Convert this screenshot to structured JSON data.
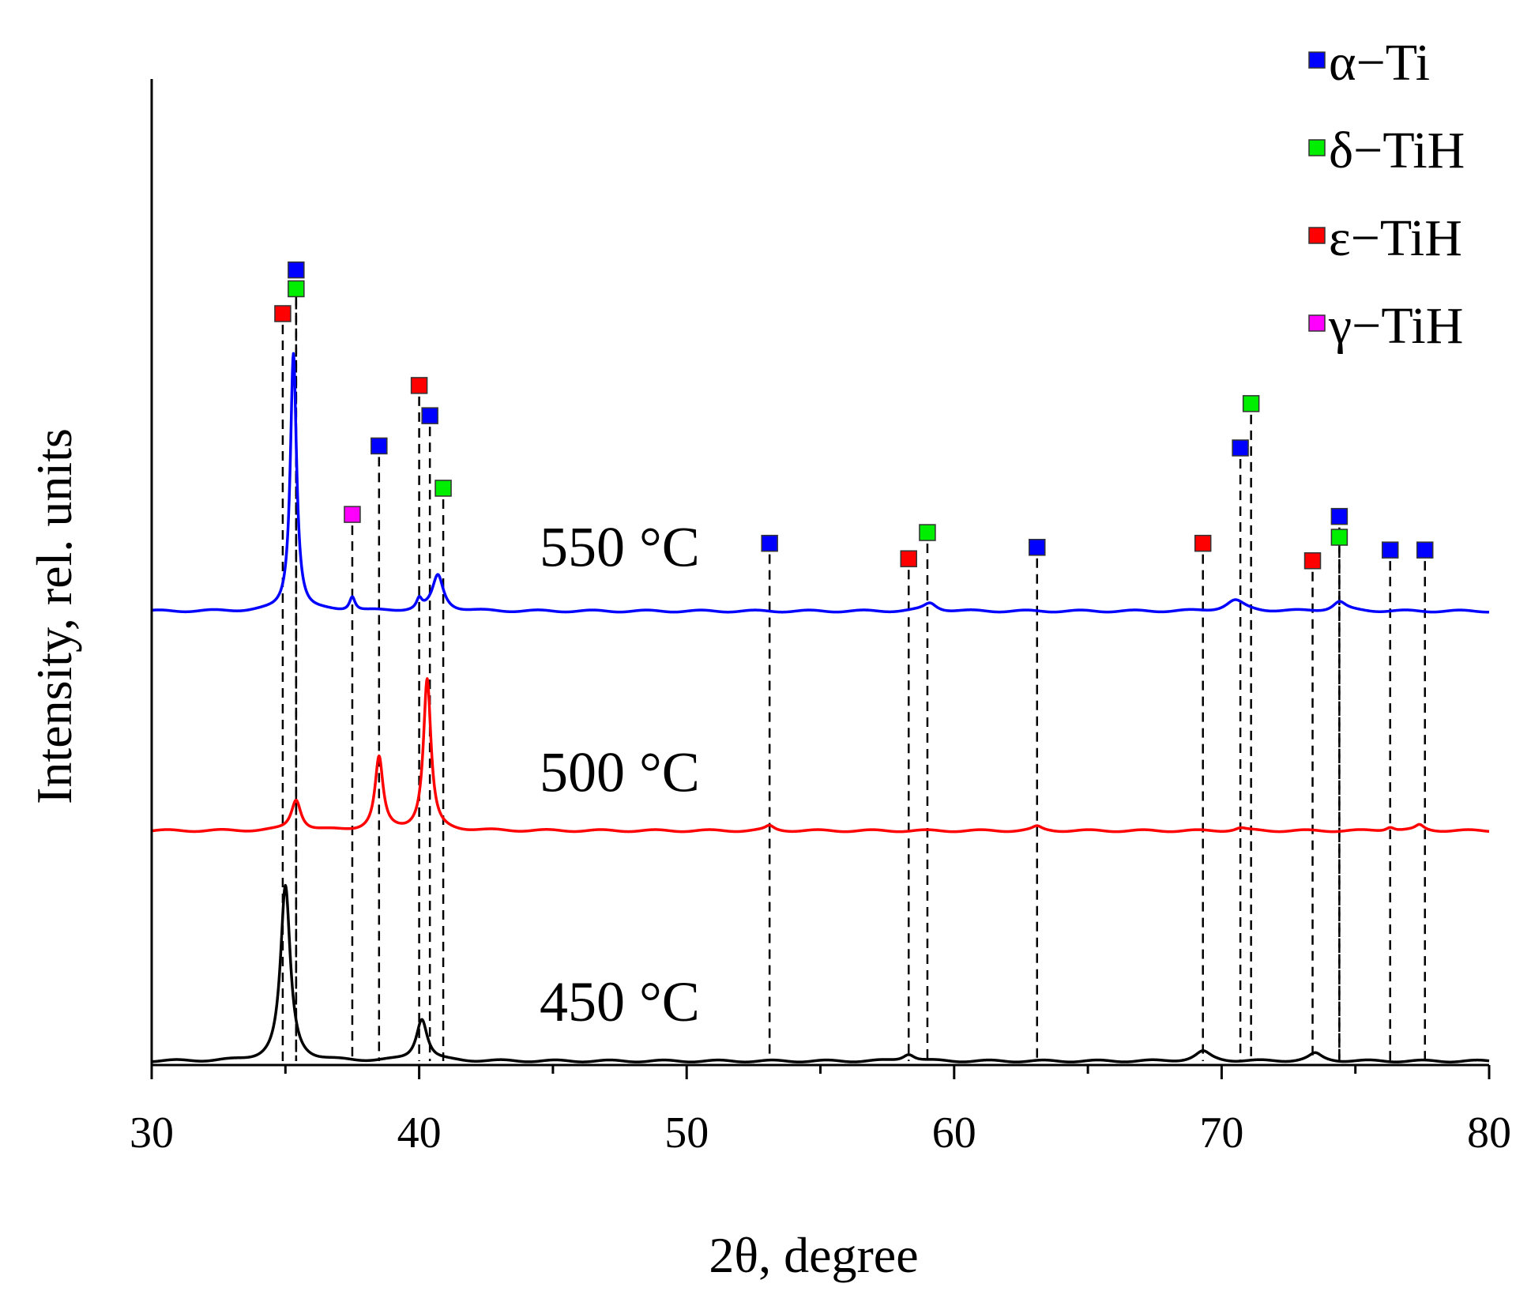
{
  "chart_data": {
    "type": "line",
    "title": "",
    "xlabel": "2θ, degree",
    "ylabel": "Intensity, rel. units",
    "xlim": [
      30,
      80
    ],
    "ylim": [
      0,
      100
    ],
    "xticks": [
      30,
      40,
      50,
      60,
      70,
      80
    ],
    "xtick_labels": [
      "30",
      "40",
      "50",
      "60",
      "70",
      "80"
    ],
    "grid": false,
    "legend_position": "top-right",
    "legend": [
      {
        "name": "α−Ti",
        "color": "#0000ff"
      },
      {
        "name": "δ−TiH",
        "color": "#00ee00"
      },
      {
        "name": "ε−TiH",
        "color": "#ff0000"
      },
      {
        "name": "γ−TiH",
        "color": "#ff00ff"
      }
    ],
    "series": [
      {
        "name": "450 °C",
        "label": "450 °C",
        "color": "#000000",
        "baseline": 0,
        "peaks": [
          {
            "x": 35.0,
            "h": 26.0,
            "w": 0.22
          },
          {
            "x": 40.1,
            "h": 6.3,
            "w": 0.25
          },
          {
            "x": 58.3,
            "h": 1.1,
            "w": 0.28
          },
          {
            "x": 69.3,
            "h": 1.4,
            "w": 0.35
          },
          {
            "x": 73.5,
            "h": 1.1,
            "w": 0.3
          }
        ]
      },
      {
        "name": "500 °C",
        "label": "500 °C",
        "color": "#ff0000",
        "baseline": 34.3,
        "peaks": [
          {
            "x": 35.4,
            "h": 4.6,
            "w": 0.22
          },
          {
            "x": 38.5,
            "h": 10.8,
            "w": 0.18
          },
          {
            "x": 40.3,
            "h": 22.5,
            "w": 0.17
          },
          {
            "x": 53.1,
            "h": 0.7,
            "w": 0.2
          },
          {
            "x": 63.1,
            "h": 0.6,
            "w": 0.22
          },
          {
            "x": 70.7,
            "h": 0.4,
            "w": 0.25
          },
          {
            "x": 76.3,
            "h": 0.6,
            "w": 0.2
          },
          {
            "x": 77.4,
            "h": 0.8,
            "w": 0.2
          }
        ]
      },
      {
        "name": "550 °C",
        "label": "550 °C",
        "color": "#0000ff",
        "baseline": 67.0,
        "peaks": [
          {
            "x": 35.3,
            "h": 38.5,
            "w": 0.14
          },
          {
            "x": 37.5,
            "h": 2.1,
            "w": 0.13
          },
          {
            "x": 40.0,
            "h": 1.5,
            "w": 0.12
          },
          {
            "x": 40.7,
            "h": 5.3,
            "w": 0.25
          },
          {
            "x": 59.1,
            "h": 1.2,
            "w": 0.3
          },
          {
            "x": 70.5,
            "h": 1.6,
            "w": 0.42
          },
          {
            "x": 74.4,
            "h": 1.4,
            "w": 0.3
          }
        ]
      }
    ],
    "reference_markers": [
      {
        "x": 34.9,
        "phase": "ε−TiH",
        "color": "#ff0000",
        "y": 111.3
      },
      {
        "x": 35.4,
        "phase": "δ−TiH",
        "color": "#00ee00",
        "y": 115.0
      },
      {
        "x": 35.4,
        "phase": "α−Ti",
        "color": "#0000ff",
        "y": 117.8
      },
      {
        "x": 37.5,
        "phase": "γ−TiH",
        "color": "#ff00ff",
        "y": 81.4
      },
      {
        "x": 38.5,
        "phase": "α−Ti",
        "color": "#0000ff",
        "y": 91.6
      },
      {
        "x": 40.0,
        "phase": "ε−TiH",
        "color": "#ff0000",
        "y": 100.6
      },
      {
        "x": 40.4,
        "phase": "α−Ti",
        "color": "#0000ff",
        "y": 96.1
      },
      {
        "x": 40.9,
        "phase": "δ−TiH",
        "color": "#00ee00",
        "y": 85.3
      },
      {
        "x": 53.1,
        "phase": "α−Ti",
        "color": "#0000ff",
        "y": 77.1
      },
      {
        "x": 58.3,
        "phase": "ε−TiH",
        "color": "#ff0000",
        "y": 74.8
      },
      {
        "x": 59.0,
        "phase": "δ−TiH",
        "color": "#00ee00",
        "y": 78.7
      },
      {
        "x": 63.1,
        "phase": "α−Ti",
        "color": "#0000ff",
        "y": 76.5
      },
      {
        "x": 69.3,
        "phase": "ε−TiH",
        "color": "#ff0000",
        "y": 77.1
      },
      {
        "x": 70.7,
        "phase": "α−Ti",
        "color": "#0000ff",
        "y": 91.3
      },
      {
        "x": 71.1,
        "phase": "δ−TiH",
        "color": "#00ee00",
        "y": 97.9
      },
      {
        "x": 73.4,
        "phase": "ε−TiH",
        "color": "#ff0000",
        "y": 74.5
      },
      {
        "x": 74.4,
        "phase": "δ−TiH",
        "color": "#00ee00",
        "y": 78.0
      },
      {
        "x": 74.4,
        "phase": "α−Ti",
        "color": "#0000ff",
        "y": 81.1
      },
      {
        "x": 76.3,
        "phase": "α−Ti",
        "color": "#0000ff",
        "y": 76.1
      },
      {
        "x": 77.6,
        "phase": "α−Ti",
        "color": "#0000ff",
        "y": 76.1
      }
    ]
  }
}
